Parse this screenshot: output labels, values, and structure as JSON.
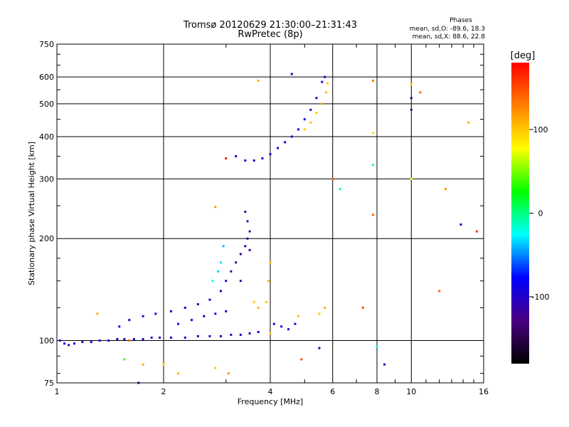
{
  "chart_data": {
    "type": "scatter",
    "title": "Tromsø 20120629 21:30:00–21:31:43",
    "subtitle": "RwPretec (8p)",
    "xlabel": "Frequency [MHz]",
    "ylabel": "Stationary phase Virtual Height [km]",
    "x_scale": "log",
    "y_scale": "log",
    "xlim": [
      1,
      16
    ],
    "ylim": [
      75,
      750
    ],
    "x_ticks": [
      1,
      2,
      4,
      6,
      8,
      10,
      16
    ],
    "y_ticks": [
      75,
      100,
      200,
      300,
      400,
      500,
      600,
      750
    ],
    "grid": true,
    "phase_stats": {
      "title": "Phases",
      "line_o": "mean, sd,O: -89.6, 18.3",
      "line_x": "mean, sd,X:  88.6, 22.8"
    },
    "colorbar": {
      "label": "[deg]",
      "range": [
        -180,
        180
      ],
      "ticks": [
        100,
        0,
        -100
      ],
      "colors": [
        "#000000",
        "#4b0082",
        "#0000ff",
        "#00ffff",
        "#00ff00",
        "#ffff00",
        "#ff8000",
        "#ff0000"
      ]
    },
    "series": [
      {
        "points": [
          [
            1.02,
            100,
            -95
          ],
          [
            1.05,
            98,
            -100
          ],
          [
            1.08,
            97,
            -98
          ],
          [
            1.12,
            98,
            -96
          ],
          [
            1.18,
            99,
            -100
          ],
          [
            1.25,
            99,
            -95
          ],
          [
            1.32,
            100,
            -98
          ],
          [
            1.4,
            100,
            -100
          ],
          [
            1.48,
            101,
            -96
          ],
          [
            1.55,
            101,
            -100
          ],
          [
            1.65,
            101,
            -95
          ],
          [
            1.75,
            101,
            -98
          ],
          [
            1.85,
            102,
            -100
          ],
          [
            1.95,
            102,
            -96
          ],
          [
            2.1,
            102,
            -98
          ],
          [
            2.3,
            102,
            -100
          ],
          [
            2.5,
            103,
            -95
          ],
          [
            2.7,
            103,
            -98
          ],
          [
            2.9,
            103,
            -100
          ],
          [
            3.1,
            104,
            -96
          ],
          [
            3.3,
            104,
            -98
          ],
          [
            3.5,
            105,
            -100
          ],
          [
            3.7,
            106,
            -95
          ],
          [
            1.5,
            110,
            -100
          ],
          [
            1.6,
            115,
            -96
          ],
          [
            1.75,
            118,
            -98
          ],
          [
            1.9,
            120,
            -100
          ],
          [
            2.1,
            122,
            -95
          ],
          [
            2.3,
            125,
            -98
          ],
          [
            2.5,
            128,
            -100
          ],
          [
            2.7,
            132,
            -96
          ],
          [
            2.9,
            140,
            -98
          ],
          [
            3.0,
            150,
            -100
          ],
          [
            2.2,
            112,
            -90
          ],
          [
            2.4,
            115,
            -92
          ],
          [
            2.6,
            118,
            -95
          ],
          [
            2.8,
            120,
            -94
          ],
          [
            3.0,
            122,
            -96
          ],
          [
            3.1,
            160,
            -110
          ],
          [
            3.2,
            170,
            -115
          ],
          [
            3.3,
            180,
            -120
          ],
          [
            3.4,
            190,
            -118
          ],
          [
            3.45,
            200,
            -122
          ],
          [
            3.5,
            210,
            -120
          ],
          [
            3.45,
            225,
            -118
          ],
          [
            3.4,
            240,
            -120
          ],
          [
            3.5,
            185,
            -115
          ],
          [
            3.3,
            150,
            -115
          ],
          [
            2.9,
            170,
            -30
          ],
          [
            2.95,
            190,
            -40
          ],
          [
            2.85,
            160,
            -35
          ],
          [
            2.75,
            150,
            -25
          ],
          [
            3.9,
            130,
            100
          ],
          [
            3.95,
            150,
            105
          ],
          [
            4.0,
            170,
            100
          ],
          [
            3.7,
            125,
            110
          ],
          [
            3.6,
            130,
            95
          ],
          [
            4.1,
            112,
            -100
          ],
          [
            4.3,
            110,
            -96
          ],
          [
            4.5,
            108,
            -98
          ],
          [
            4.7,
            112,
            -100
          ],
          [
            4.0,
            105,
            100
          ],
          [
            4.8,
            118,
            105
          ],
          [
            5.5,
            120,
            100
          ],
          [
            5.7,
            125,
            110
          ],
          [
            3.2,
            350,
            -100
          ],
          [
            3.4,
            340,
            -98
          ],
          [
            3.6,
            340,
            -100
          ],
          [
            3.8,
            345,
            -96
          ],
          [
            4.0,
            355,
            -98
          ],
          [
            4.2,
            370,
            -100
          ],
          [
            4.4,
            385,
            -96
          ],
          [
            4.6,
            400,
            -98
          ],
          [
            4.8,
            420,
            -100
          ],
          [
            5.0,
            450,
            -95
          ],
          [
            5.2,
            480,
            -98
          ],
          [
            5.4,
            520,
            -100
          ],
          [
            5.6,
            580,
            -96
          ],
          [
            5.7,
            600,
            -100
          ],
          [
            5.0,
            420,
            100
          ],
          [
            5.2,
            440,
            105
          ],
          [
            5.4,
            470,
            100
          ],
          [
            5.6,
            500,
            110
          ],
          [
            5.75,
            540,
            105
          ],
          [
            5.8,
            575,
            100
          ],
          [
            6.3,
            280,
            -10
          ],
          [
            7.8,
            330,
            -15
          ],
          [
            7.8,
            410,
            90
          ],
          [
            10,
            300,
            80
          ],
          [
            10,
            570,
            95
          ],
          [
            10,
            520,
            -110
          ],
          [
            10,
            480,
            -110
          ],
          [
            12.5,
            280,
            120
          ],
          [
            13.8,
            220,
            -100
          ],
          [
            14.5,
            440,
            110
          ],
          [
            15.3,
            210,
            160
          ],
          [
            10.6,
            540,
            140
          ],
          [
            7.8,
            585,
            130
          ],
          [
            7.8,
            235,
            140
          ],
          [
            6.0,
            300,
            140
          ],
          [
            8.0,
            96,
            -20
          ],
          [
            8.4,
            85,
            -110
          ],
          [
            5.5,
            95,
            -110
          ],
          [
            12.0,
            140,
            140
          ],
          [
            7.3,
            125,
            150
          ],
          [
            4.6,
            612,
            -100
          ],
          [
            3.7,
            585,
            110
          ],
          [
            3.0,
            345,
            170
          ],
          [
            2.8,
            248,
            120
          ],
          [
            1.3,
            120,
            110
          ],
          [
            1.6,
            100,
            140
          ],
          [
            1.75,
            85,
            110
          ],
          [
            2.0,
            85,
            90
          ],
          [
            2.2,
            80,
            110
          ],
          [
            1.7,
            75,
            -100
          ],
          [
            1.55,
            88,
            40
          ],
          [
            2.8,
            83,
            100
          ],
          [
            3.05,
            80,
            120
          ],
          [
            4.9,
            88,
            150
          ]
        ]
      }
    ]
  }
}
